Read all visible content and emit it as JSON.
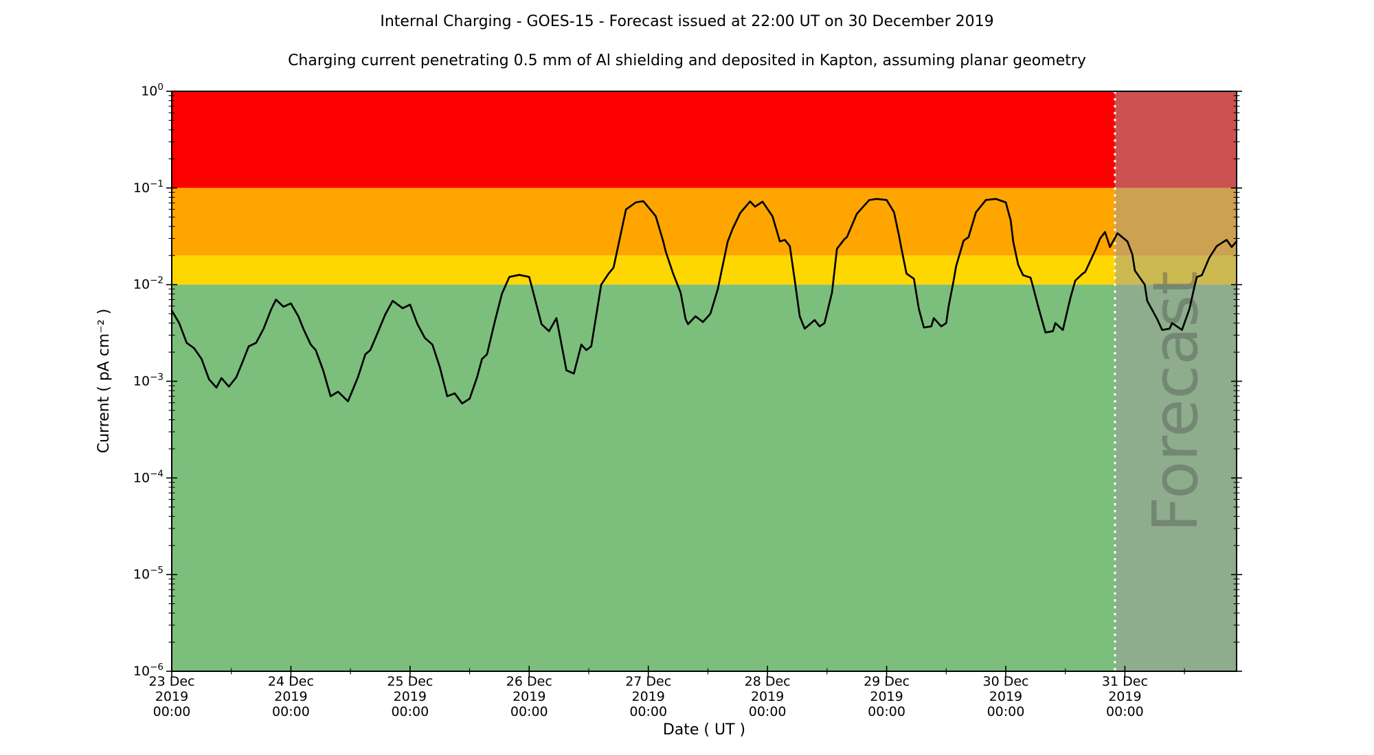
{
  "title": "Internal Charging - GOES-15 - Forecast issued at 22:00 UT on 30 December 2019",
  "subtitle": "Charging current penetrating 0.5 mm of Al shielding and deposited in Kapton, assuming planar geometry",
  "y_axis": {
    "label": "Current ( pA cm⁻² )",
    "scale": "log",
    "tick_base": "10",
    "tick_exponents": [
      0,
      -1,
      -2,
      -3,
      -4,
      -5,
      -6
    ],
    "range": [
      1e-06,
      1
    ]
  },
  "x_axis": {
    "label": "Date ( UT )",
    "range_hours": [
      0,
      214.5
    ],
    "ticks": [
      {
        "date": "23 Dec",
        "year": "2019",
        "time": "00:00",
        "hour": 0
      },
      {
        "date": "24 Dec",
        "year": "2019",
        "time": "00:00",
        "hour": 24
      },
      {
        "date": "25 Dec",
        "year": "2019",
        "time": "00:00",
        "hour": 48
      },
      {
        "date": "26 Dec",
        "year": "2019",
        "time": "00:00",
        "hour": 72
      },
      {
        "date": "27 Dec",
        "year": "2019",
        "time": "00:00",
        "hour": 96
      },
      {
        "date": "28 Dec",
        "year": "2019",
        "time": "00:00",
        "hour": 120
      },
      {
        "date": "29 Dec",
        "year": "2019",
        "time": "00:00",
        "hour": 144
      },
      {
        "date": "30 Dec",
        "year": "2019",
        "time": "00:00",
        "hour": 168
      },
      {
        "date": "31 Dec",
        "year": "2019",
        "time": "00:00",
        "hour": 192
      }
    ],
    "minor_tick_hours": [
      12,
      36,
      60,
      84,
      108,
      132,
      156,
      180,
      204
    ]
  },
  "bands": [
    {
      "name": "red-alert-band",
      "color": "#ff0000",
      "from": 0.1,
      "to": 1.0
    },
    {
      "name": "amber-alert-band",
      "color": "#ffa500",
      "from": 0.02,
      "to": 0.1
    },
    {
      "name": "yellow-alert-band",
      "color": "#ffd700",
      "from": 0.01,
      "to": 0.02
    },
    {
      "name": "green-quiet-band",
      "color": "#7cbe7c",
      "from": 1e-06,
      "to": 0.01
    }
  ],
  "forecast_region": {
    "watermark": "Forecast",
    "start_hour": 190,
    "end_hour": 214.5,
    "start_time_context": "30 Dec 2019 22:00 UT",
    "overlay_color": "#9e9e9e",
    "overlay_alpha": 0.52,
    "divider_color": "#ffffff",
    "divider_style": "dotted"
  },
  "chart_data": {
    "type": "line",
    "title": "Internal Charging - GOES-15 - Forecast issued at 22:00 UT on 30 December 2019",
    "xlabel": "Date ( UT )",
    "ylabel": "Current ( pA cm⁻² )",
    "x_unit": "hours since 23 Dec 2019 00:00 UT",
    "y_unit": "pA cm-2",
    "ylim": [
      1e-06,
      1
    ],
    "yscale": "log",
    "grid": false,
    "legend": "none",
    "line_color": "#000000",
    "series": [
      {
        "name": "charging-current",
        "points": [
          [
            0,
            0.0054
          ],
          [
            1.5,
            0.004
          ],
          [
            3,
            0.0025
          ],
          [
            4.5,
            0.0022
          ],
          [
            6,
            0.0017
          ],
          [
            7.5,
            0.00105
          ],
          [
            9,
            0.00086
          ],
          [
            10,
            0.00108
          ],
          [
            11.5,
            0.00088
          ],
          [
            13,
            0.0011
          ],
          [
            14.5,
            0.0017
          ],
          [
            15.5,
            0.0023
          ],
          [
            17,
            0.0025
          ],
          [
            18.5,
            0.0035
          ],
          [
            20,
            0.0055
          ],
          [
            21,
            0.007
          ],
          [
            22.5,
            0.0059
          ],
          [
            24,
            0.0064
          ],
          [
            25.5,
            0.0047
          ],
          [
            26.5,
            0.0035
          ],
          [
            28,
            0.0024
          ],
          [
            29,
            0.0021
          ],
          [
            30.5,
            0.0013
          ],
          [
            32,
            0.0007
          ],
          [
            33.5,
            0.00078
          ],
          [
            35.5,
            0.00062
          ],
          [
            37.5,
            0.0011
          ],
          [
            39,
            0.0019
          ],
          [
            40,
            0.0021
          ],
          [
            41.5,
            0.0032
          ],
          [
            43,
            0.0049
          ],
          [
            44.5,
            0.0068
          ],
          [
            46.5,
            0.0057
          ],
          [
            48,
            0.0062
          ],
          [
            49.5,
            0.0039
          ],
          [
            51,
            0.0028
          ],
          [
            52.5,
            0.0024
          ],
          [
            54,
            0.0014
          ],
          [
            55.5,
            0.0007
          ],
          [
            57,
            0.00075
          ],
          [
            58.5,
            0.00059
          ],
          [
            60,
            0.00066
          ],
          [
            61.5,
            0.0011
          ],
          [
            62.5,
            0.0017
          ],
          [
            63.5,
            0.0019
          ],
          [
            65,
            0.004
          ],
          [
            66.5,
            0.008
          ],
          [
            68,
            0.012
          ],
          [
            70,
            0.0126
          ],
          [
            72,
            0.012
          ],
          [
            74.5,
            0.0039
          ],
          [
            76,
            0.0033
          ],
          [
            77.5,
            0.0045
          ],
          [
            79.5,
            0.0013
          ],
          [
            81,
            0.0012
          ],
          [
            82.5,
            0.0024
          ],
          [
            83.5,
            0.0021
          ],
          [
            84.5,
            0.0023
          ],
          [
            86.5,
            0.01
          ],
          [
            88,
            0.013
          ],
          [
            89,
            0.015
          ],
          [
            91.5,
            0.06
          ],
          [
            93.5,
            0.071
          ],
          [
            95,
            0.073
          ],
          [
            97.5,
            0.051
          ],
          [
            99,
            0.028
          ],
          [
            99.5,
            0.022
          ],
          [
            101,
            0.013
          ],
          [
            102.5,
            0.0083
          ],
          [
            103.5,
            0.0044
          ],
          [
            104,
            0.0039
          ],
          [
            105.5,
            0.0047
          ],
          [
            107,
            0.0041
          ],
          [
            108.5,
            0.005
          ],
          [
            110,
            0.009
          ],
          [
            110.5,
            0.012
          ],
          [
            112,
            0.028
          ],
          [
            113,
            0.038
          ],
          [
            114.5,
            0.055
          ],
          [
            116.5,
            0.0725
          ],
          [
            117.5,
            0.064
          ],
          [
            119,
            0.072
          ],
          [
            121,
            0.051
          ],
          [
            122.5,
            0.028
          ],
          [
            123.5,
            0.029
          ],
          [
            124.5,
            0.025
          ],
          [
            125.5,
            0.011
          ],
          [
            126.5,
            0.0047
          ],
          [
            127.5,
            0.0035
          ],
          [
            129.5,
            0.0043
          ],
          [
            130.5,
            0.0037
          ],
          [
            131.5,
            0.004
          ],
          [
            133,
            0.0083
          ],
          [
            134,
            0.0235
          ],
          [
            135.5,
            0.0295
          ],
          [
            136,
            0.031
          ],
          [
            138,
            0.054
          ],
          [
            140.5,
            0.075
          ],
          [
            142,
            0.077
          ],
          [
            144,
            0.075
          ],
          [
            145.5,
            0.056
          ],
          [
            146.5,
            0.032
          ],
          [
            147,
            0.0235
          ],
          [
            148,
            0.013
          ],
          [
            149.5,
            0.0115
          ],
          [
            150.5,
            0.0056
          ],
          [
            151.5,
            0.0036
          ],
          [
            153,
            0.0037
          ],
          [
            153.5,
            0.0045
          ],
          [
            155,
            0.0037
          ],
          [
            156,
            0.004
          ],
          [
            156.5,
            0.006
          ],
          [
            157.5,
            0.011
          ],
          [
            158,
            0.0155
          ],
          [
            159.5,
            0.0285
          ],
          [
            160.5,
            0.031
          ],
          [
            162,
            0.056
          ],
          [
            164,
            0.075
          ],
          [
            166,
            0.077
          ],
          [
            168,
            0.071
          ],
          [
            169,
            0.046
          ],
          [
            169.5,
            0.028
          ],
          [
            170.5,
            0.016
          ],
          [
            171.5,
            0.0125
          ],
          [
            173,
            0.0118
          ],
          [
            173.5,
            0.0095
          ],
          [
            174.5,
            0.006
          ],
          [
            176,
            0.0032
          ],
          [
            177.5,
            0.0033
          ],
          [
            178,
            0.004
          ],
          [
            179.5,
            0.0034
          ],
          [
            181,
            0.0072
          ],
          [
            182,
            0.011
          ],
          [
            183.5,
            0.013
          ],
          [
            184,
            0.0135
          ],
          [
            186,
            0.0225
          ],
          [
            187,
            0.03
          ],
          [
            188,
            0.035
          ],
          [
            189,
            0.0245
          ],
          [
            190.5,
            0.034
          ],
          [
            192.5,
            0.028
          ],
          [
            193.5,
            0.0205
          ],
          [
            194,
            0.014
          ],
          [
            195,
            0.0118
          ],
          [
            196,
            0.01
          ],
          [
            196.5,
            0.0068
          ],
          [
            198.5,
            0.0044
          ],
          [
            199.5,
            0.0034
          ],
          [
            201,
            0.0035
          ],
          [
            201.5,
            0.004
          ],
          [
            203.5,
            0.0034
          ],
          [
            205,
            0.0056
          ],
          [
            206,
            0.0095
          ],
          [
            206.5,
            0.012
          ],
          [
            207.5,
            0.0125
          ],
          [
            209,
            0.019
          ],
          [
            210.5,
            0.025
          ],
          [
            212,
            0.028
          ],
          [
            212.5,
            0.029
          ],
          [
            213.5,
            0.0245
          ],
          [
            214.5,
            0.028
          ]
        ]
      }
    ],
    "annotations": [
      "Forecast"
    ]
  }
}
